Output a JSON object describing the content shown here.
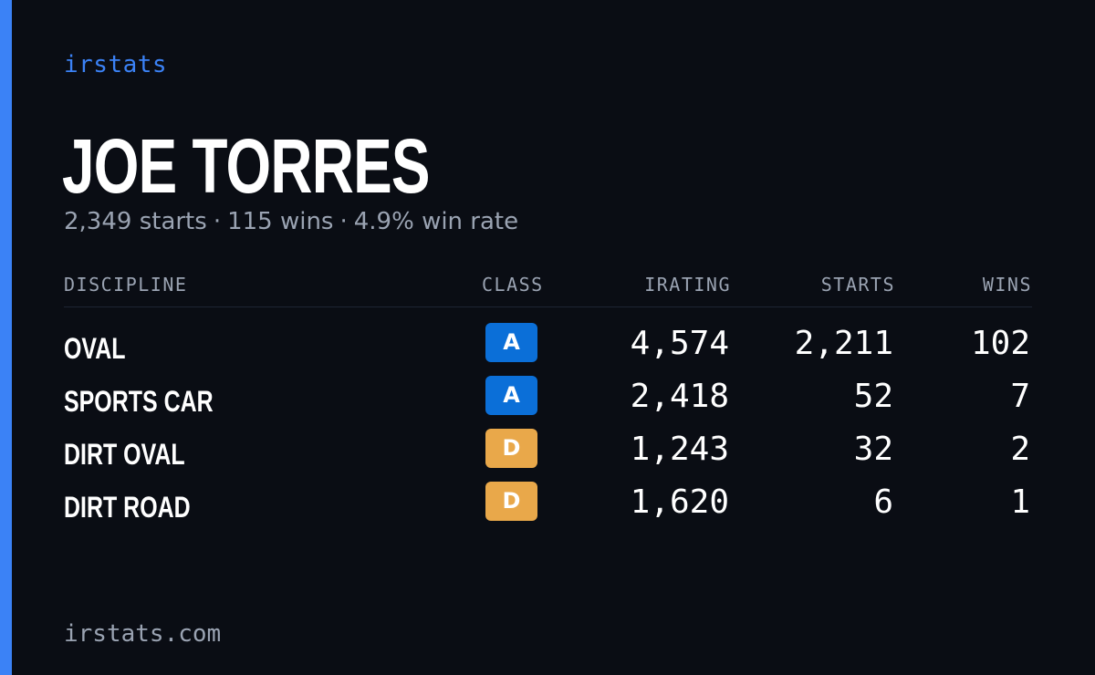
{
  "brand": "irstats",
  "profile": {
    "name": "JOE TORRES",
    "starts": "2,349 starts",
    "wins": "115 wins",
    "win_rate": "4.9% win rate",
    "separator": "·"
  },
  "table": {
    "headers": {
      "discipline": "DISCIPLINE",
      "class": "CLASS",
      "irating": "IRATING",
      "starts": "STARTS",
      "wins": "WINS"
    },
    "rows": [
      {
        "discipline": "OVAL",
        "class": "A",
        "class_color": "#0b6fd8",
        "irating": "4,574",
        "starts": "2,211",
        "wins": "102"
      },
      {
        "discipline": "SPORTS CAR",
        "class": "A",
        "class_color": "#0b6fd8",
        "irating": "2,418",
        "starts": "52",
        "wins": "7"
      },
      {
        "discipline": "DIRT OVAL",
        "class": "D",
        "class_color": "#e9a84a",
        "irating": "1,243",
        "starts": "32",
        "wins": "2"
      },
      {
        "discipline": "DIRT ROAD",
        "class": "D",
        "class_color": "#e9a84a",
        "irating": "1,620",
        "starts": "6",
        "wins": "1"
      }
    ]
  },
  "footer": "irstats.com",
  "colors": {
    "accent": "#3b82f6",
    "background": "#0a0d14",
    "muted_text": "#9aa3b2"
  }
}
